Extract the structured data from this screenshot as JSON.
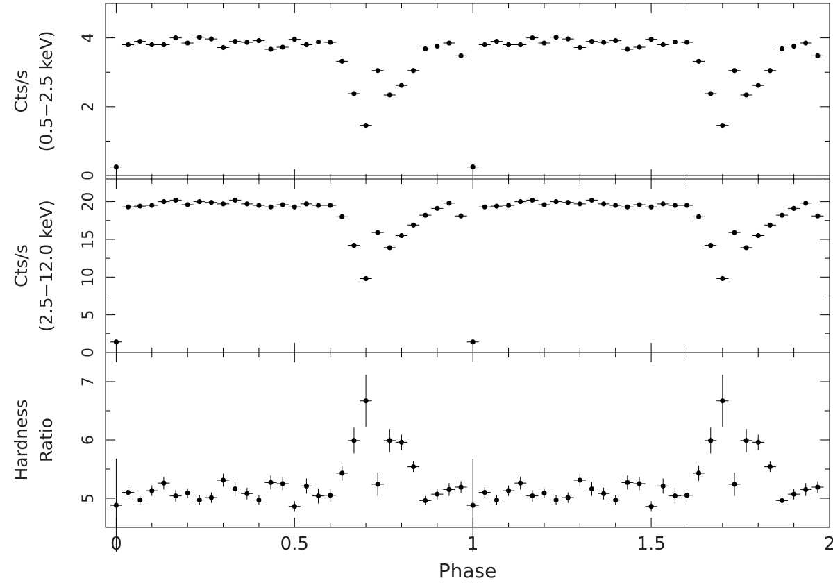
{
  "chart_data": {
    "type": "scatter",
    "xlabel": "Phase",
    "x_ticks": [
      "0",
      "0.5",
      "1",
      "1.5",
      "2"
    ],
    "xlim": [
      -0.03,
      2.0
    ],
    "panels": [
      {
        "name": "soft-counts",
        "ylabel_lines": [
          "Cts/s",
          "(0.5−2.5 keV)"
        ],
        "ylim": [
          -0.1,
          5.0
        ],
        "y_ticks": [
          0,
          2,
          4
        ],
        "y_tick_labels": [
          "0",
          "2",
          "4"
        ],
        "x": [
          0,
          0.0333,
          0.0667,
          0.1,
          0.1333,
          0.1667,
          0.2,
          0.2333,
          0.2667,
          0.3,
          0.3333,
          0.3667,
          0.4,
          0.4333,
          0.4667,
          0.5,
          0.5333,
          0.5667,
          0.6,
          0.6333,
          0.6667,
          0.7,
          0.7333,
          0.7667,
          0.8,
          0.8333,
          0.8667,
          0.9,
          0.9333,
          0.9667,
          1.0,
          1.0333,
          1.0667,
          1.1,
          1.1333,
          1.1667,
          1.2,
          1.2333,
          1.2667,
          1.3,
          1.3333,
          1.3667,
          1.4,
          1.4333,
          1.4667,
          1.5,
          1.5333,
          1.5667,
          1.6,
          1.6333,
          1.6667,
          1.7,
          1.7333,
          1.7667,
          1.8,
          1.8333,
          1.8667,
          1.9,
          1.9333,
          1.9667
        ],
        "y": [
          0.25,
          3.8,
          3.9,
          3.8,
          3.8,
          4.0,
          3.85,
          4.02,
          3.97,
          3.72,
          3.9,
          3.87,
          3.92,
          3.67,
          3.73,
          3.96,
          3.8,
          3.88,
          3.87,
          3.32,
          2.38,
          1.46,
          3.05,
          2.34,
          2.62,
          3.05,
          3.68,
          3.76,
          3.85,
          3.48,
          0.25,
          3.8,
          3.9,
          3.8,
          3.8,
          4.0,
          3.85,
          4.02,
          3.97,
          3.72,
          3.9,
          3.87,
          3.92,
          3.67,
          3.73,
          3.96,
          3.8,
          3.88,
          3.87,
          3.32,
          2.38,
          1.46,
          3.05,
          2.34,
          2.62,
          3.05,
          3.68,
          3.76,
          3.85,
          3.48
        ],
        "yerr": [
          0.05,
          0.05,
          0.05,
          0.05,
          0.05,
          0.05,
          0.05,
          0.05,
          0.05,
          0.05,
          0.05,
          0.05,
          0.05,
          0.05,
          0.05,
          0.05,
          0.05,
          0.05,
          0.05,
          0.05,
          0.05,
          0.05,
          0.05,
          0.05,
          0.05,
          0.05,
          0.05,
          0.05,
          0.05,
          0.05,
          0.05,
          0.05,
          0.05,
          0.05,
          0.05,
          0.05,
          0.05,
          0.05,
          0.05,
          0.05,
          0.05,
          0.05,
          0.05,
          0.05,
          0.05,
          0.05,
          0.05,
          0.05,
          0.05,
          0.05,
          0.05,
          0.05,
          0.05,
          0.05,
          0.05,
          0.05,
          0.05,
          0.05,
          0.05,
          0.05
        ]
      },
      {
        "name": "hard-counts",
        "ylabel_lines": [
          "Cts/s",
          "(2.5−12.0 keV)"
        ],
        "ylim": [
          0,
          23.0
        ],
        "y_ticks": [
          0,
          5,
          10,
          15,
          20
        ],
        "y_tick_labels": [
          "0",
          "5",
          "10",
          "15",
          "20"
        ],
        "x": [
          0,
          0.0333,
          0.0667,
          0.1,
          0.1333,
          0.1667,
          0.2,
          0.2333,
          0.2667,
          0.3,
          0.3333,
          0.3667,
          0.4,
          0.4333,
          0.4667,
          0.5,
          0.5333,
          0.5667,
          0.6,
          0.6333,
          0.6667,
          0.7,
          0.7333,
          0.7667,
          0.8,
          0.8333,
          0.8667,
          0.9,
          0.9333,
          0.9667,
          1.0,
          1.0333,
          1.0667,
          1.1,
          1.1333,
          1.1667,
          1.2,
          1.2333,
          1.2667,
          1.3,
          1.3333,
          1.3667,
          1.4,
          1.4333,
          1.4667,
          1.5,
          1.5333,
          1.5667,
          1.6,
          1.6333,
          1.6667,
          1.7,
          1.7333,
          1.7667,
          1.8,
          1.8333,
          1.8667,
          1.9,
          1.9333,
          1.9667
        ],
        "y": [
          1.4,
          19.3,
          19.4,
          19.5,
          20.0,
          20.2,
          19.6,
          20.0,
          19.9,
          19.7,
          20.2,
          19.7,
          19.5,
          19.3,
          19.6,
          19.3,
          19.7,
          19.5,
          19.5,
          18.0,
          14.2,
          9.8,
          15.9,
          13.9,
          15.5,
          16.9,
          18.2,
          19.1,
          19.8,
          18.1,
          1.4,
          19.3,
          19.4,
          19.5,
          20.0,
          20.2,
          19.6,
          20.0,
          19.9,
          19.7,
          20.2,
          19.7,
          19.5,
          19.3,
          19.6,
          19.3,
          19.7,
          19.5,
          19.5,
          18.0,
          14.2,
          9.8,
          15.9,
          13.9,
          15.5,
          16.9,
          18.2,
          19.1,
          19.8,
          18.1
        ],
        "yerr": [
          0.15,
          0.15,
          0.15,
          0.15,
          0.15,
          0.15,
          0.15,
          0.15,
          0.15,
          0.15,
          0.15,
          0.15,
          0.15,
          0.15,
          0.15,
          0.15,
          0.15,
          0.15,
          0.15,
          0.15,
          0.15,
          0.15,
          0.15,
          0.15,
          0.15,
          0.15,
          0.15,
          0.15,
          0.15,
          0.15,
          0.15,
          0.15,
          0.15,
          0.15,
          0.15,
          0.15,
          0.15,
          0.15,
          0.15,
          0.15,
          0.15,
          0.15,
          0.15,
          0.15,
          0.15,
          0.15,
          0.15,
          0.15,
          0.15,
          0.15,
          0.15,
          0.15,
          0.15,
          0.15,
          0.15,
          0.15,
          0.15,
          0.15,
          0.15,
          0.15
        ]
      },
      {
        "name": "hardness-ratio",
        "ylabel_lines": [
          "Hardness",
          "Ratio"
        ],
        "ylim": [
          4.5,
          7.5
        ],
        "y_ticks": [
          5,
          6,
          7
        ],
        "y_tick_labels": [
          "5",
          "6",
          "7"
        ],
        "x": [
          0,
          0.0333,
          0.0667,
          0.1,
          0.1333,
          0.1667,
          0.2,
          0.2333,
          0.2667,
          0.3,
          0.3333,
          0.3667,
          0.4,
          0.4333,
          0.4667,
          0.5,
          0.5333,
          0.5667,
          0.6,
          0.6333,
          0.6667,
          0.7,
          0.7333,
          0.7667,
          0.8,
          0.8333,
          0.8667,
          0.9,
          0.9333,
          0.9667,
          1.0,
          1.0333,
          1.0667,
          1.1,
          1.1333,
          1.1667,
          1.2,
          1.2333,
          1.2667,
          1.3,
          1.3333,
          1.3667,
          1.4,
          1.4333,
          1.4667,
          1.5,
          1.5333,
          1.5667,
          1.6,
          1.6333,
          1.6667,
          1.7,
          1.7333,
          1.7667,
          1.8,
          1.8333,
          1.8667,
          1.9,
          1.9333,
          1.9667
        ],
        "y": [
          4.88,
          5.1,
          4.97,
          5.13,
          5.26,
          5.04,
          5.09,
          4.97,
          5.01,
          5.31,
          5.16,
          5.08,
          4.97,
          5.27,
          5.25,
          4.86,
          5.21,
          5.04,
          5.05,
          5.43,
          5.99,
          6.67,
          5.24,
          5.99,
          5.96,
          5.54,
          4.96,
          5.07,
          5.15,
          5.19,
          4.88,
          5.1,
          4.97,
          5.13,
          5.26,
          5.04,
          5.09,
          4.97,
          5.01,
          5.31,
          5.16,
          5.08,
          4.97,
          5.27,
          5.25,
          4.86,
          5.21,
          5.04,
          5.05,
          5.43,
          5.99,
          6.67,
          5.24,
          5.99,
          5.96,
          5.54,
          4.96,
          5.07,
          5.15,
          5.19
        ],
        "yerr": [
          0.8,
          0.09,
          0.09,
          0.09,
          0.11,
          0.1,
          0.08,
          0.08,
          0.09,
          0.11,
          0.12,
          0.1,
          0.09,
          0.12,
          0.11,
          0.09,
          0.13,
          0.13,
          0.11,
          0.13,
          0.22,
          0.45,
          0.2,
          0.2,
          0.13,
          0.09,
          0.08,
          0.09,
          0.11,
          0.1,
          0.8,
          0.09,
          0.09,
          0.09,
          0.11,
          0.1,
          0.08,
          0.08,
          0.09,
          0.11,
          0.12,
          0.1,
          0.09,
          0.12,
          0.11,
          0.09,
          0.13,
          0.13,
          0.11,
          0.13,
          0.22,
          0.45,
          0.2,
          0.2,
          0.13,
          0.09,
          0.08,
          0.09,
          0.11,
          0.1
        ]
      }
    ],
    "bin_half_width": 0.0167,
    "grid": false,
    "legend": "none",
    "marker_color": "#000000"
  }
}
